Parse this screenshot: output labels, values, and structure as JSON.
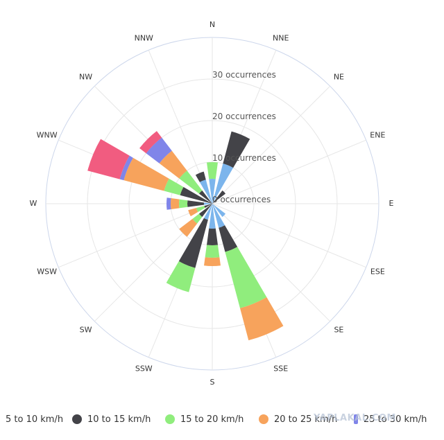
{
  "chart_data": {
    "type": "polar-stacked-bar",
    "directions": [
      "N",
      "NNE",
      "NE",
      "ENE",
      "E",
      "ESE",
      "SE",
      "SSE",
      "S",
      "SSW",
      "SW",
      "WSW",
      "W",
      "WNW",
      "NW",
      "NNW"
    ],
    "radial_axis": {
      "min": 0,
      "max": 40,
      "tick_labels": [
        "0 occurrences",
        "10 occurrences",
        "20 occurrences",
        "30 occurrences"
      ],
      "tick_values": [
        0,
        10,
        20,
        30
      ]
    },
    "series": [
      {
        "name": "5 to 10 km/h",
        "color": "#7cb5ec",
        "values": [
          6,
          10,
          0,
          0,
          0,
          0,
          4,
          6,
          6,
          4,
          0,
          0,
          2,
          0,
          0,
          6
        ]
      },
      {
        "name": "10 to 15 km/h",
        "color": "#434348",
        "values": [
          0,
          8,
          4,
          0,
          0,
          0,
          0,
          6,
          4,
          12,
          4,
          2,
          4,
          8,
          4,
          2
        ]
      },
      {
        "name": "15 to 20 km/h",
        "color": "#90ed7d",
        "values": [
          4,
          0,
          0,
          0,
          0,
          0,
          0,
          14,
          3,
          6,
          2,
          2,
          2,
          4,
          6,
          0
        ]
      },
      {
        "name": "20 to 25 km/h",
        "color": "#f7a35c",
        "values": [
          0,
          0,
          0,
          0,
          0,
          0,
          0,
          8,
          2,
          0,
          4,
          2,
          2,
          10,
          6,
          0
        ]
      },
      {
        "name": "25 to 30 km/h",
        "color": "#8085e9",
        "values": [
          0,
          0,
          0,
          0,
          0,
          0,
          0,
          0,
          0,
          0,
          0,
          0,
          1,
          1,
          4,
          0
        ]
      },
      {
        "name": "",
        "color": "#f15c80",
        "values": [
          0,
          0,
          0,
          0,
          0,
          0,
          0,
          0,
          0,
          0,
          0,
          0,
          0,
          8,
          2,
          0
        ]
      }
    ],
    "grid": true,
    "legend_placement": "bottom"
  },
  "legend": {
    "items": [
      {
        "label": "5 to 10 km/h",
        "color": "#7cb5ec"
      },
      {
        "label": "10 to 15 km/h",
        "color": "#434348"
      },
      {
        "label": "15 to 20 km/h",
        "color": "#90ed7d"
      },
      {
        "label": "20 to 25 km/h",
        "color": "#f7a35c"
      },
      {
        "label": "25 to 30 km/h",
        "color": "#8085e9"
      }
    ]
  },
  "watermark": {
    "text": "YAPLAKAL.COM"
  }
}
